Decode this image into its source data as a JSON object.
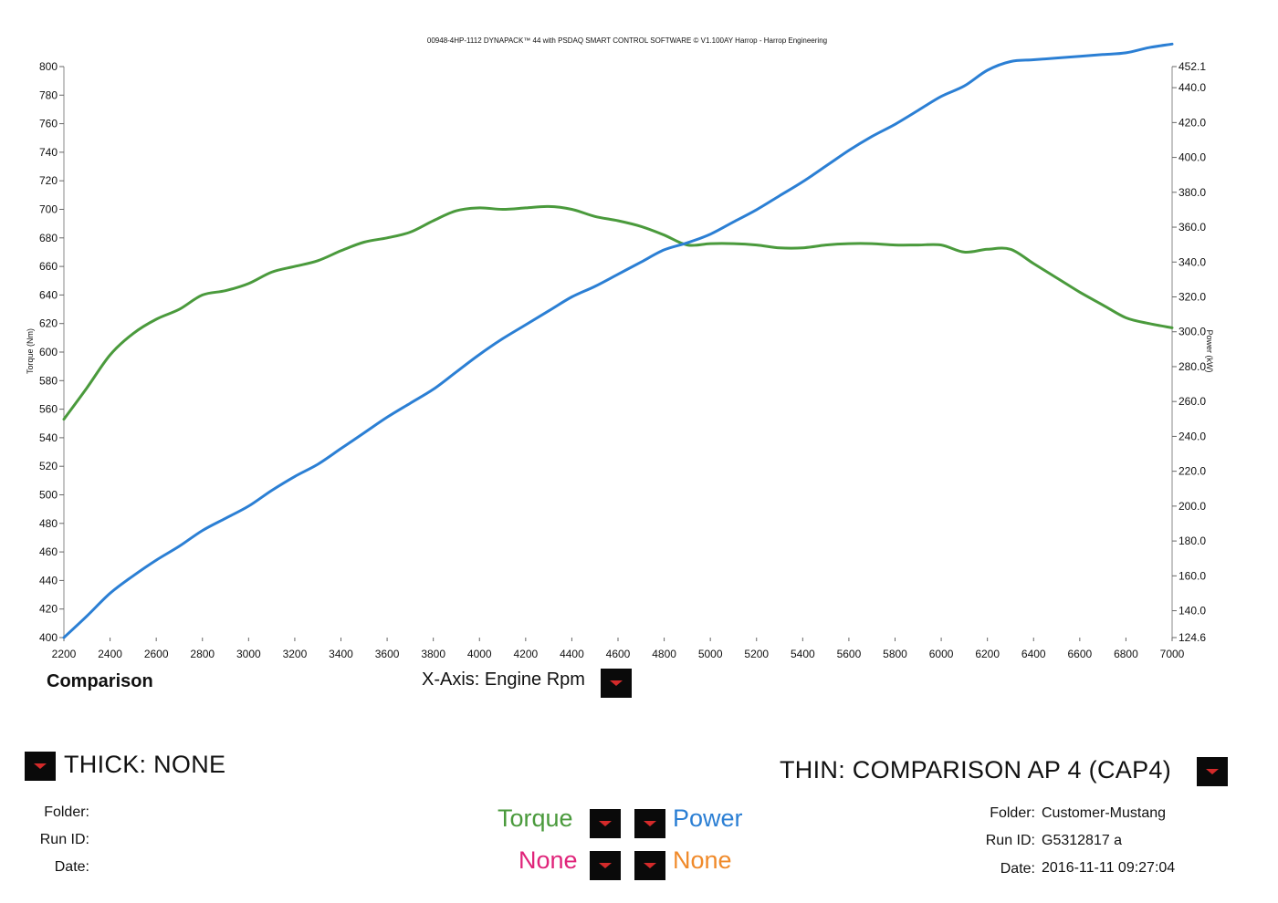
{
  "header": "00948-4HP-1112 DYNAPACK™ 44 with PSDAQ SMART CONTROL SOFTWARE © V1.100AY Harrop - Harrop Engineering",
  "chart_data": {
    "type": "line",
    "x": [
      2200,
      2300,
      2400,
      2500,
      2600,
      2700,
      2800,
      2900,
      3000,
      3100,
      3200,
      3300,
      3400,
      3500,
      3600,
      3700,
      3800,
      3900,
      4000,
      4100,
      4200,
      4300,
      4400,
      4500,
      4600,
      4700,
      4800,
      4900,
      5000,
      5100,
      5200,
      5300,
      5400,
      5500,
      5600,
      5700,
      5800,
      5900,
      6000,
      6100,
      6200,
      6300,
      6400,
      6500,
      6600,
      6700,
      6800,
      6900,
      7000
    ],
    "xlabel": "X-Axis: Engine Rpm",
    "xlim": [
      2200,
      7000
    ],
    "xticks": [
      "2200",
      "2400",
      "2600",
      "2800",
      "3000",
      "3200",
      "3400",
      "3600",
      "3800",
      "4000",
      "4200",
      "4400",
      "4600",
      "4800",
      "5000",
      "5200",
      "5400",
      "5600",
      "5800",
      "6000",
      "6200",
      "6400",
      "6600",
      "6800",
      "7000"
    ],
    "series": [
      {
        "name": "Torque",
        "axis": "left",
        "color": "#4a9a3c",
        "values": [
          553,
          575,
          598,
          613,
          623,
          630,
          640,
          643,
          648,
          656,
          660,
          664,
          671,
          677,
          680,
          684,
          692,
          699,
          701,
          700,
          701,
          702,
          700,
          695,
          692,
          688,
          682,
          675,
          676,
          676,
          675,
          673,
          673,
          675,
          676,
          676,
          675,
          675,
          675,
          670,
          672,
          672,
          662,
          652,
          642,
          633,
          624,
          620,
          617
        ]
      },
      {
        "name": "Power",
        "axis": "right",
        "color": "#2b7fd4",
        "values": [
          124.6,
          137,
          150,
          160,
          169,
          177,
          186,
          193,
          200,
          209,
          217,
          224,
          233,
          242,
          251,
          259,
          267,
          277,
          287,
          296,
          304,
          312,
          320,
          326,
          333,
          340,
          347,
          351,
          356,
          363,
          370,
          378,
          386,
          395,
          404,
          412,
          419,
          427,
          435,
          441,
          450,
          455,
          456,
          457,
          458,
          459,
          460,
          463,
          465
        ]
      }
    ],
    "y_left": {
      "label": "Torque (Nm)",
      "ylim": [
        400,
        800
      ],
      "ticks": [
        "800",
        "780",
        "760",
        "740",
        "720",
        "700",
        "680",
        "660",
        "640",
        "620",
        "600",
        "580",
        "560",
        "540",
        "520",
        "500",
        "480",
        "460",
        "440",
        "420",
        "400"
      ]
    },
    "y_right": {
      "label": "Power (kW)",
      "ylim": [
        124.6,
        452.1
      ],
      "ticks": [
        "452.1",
        "440.0",
        "420.0",
        "400.0",
        "380.0",
        "360.0",
        "340.0",
        "320.0",
        "300.0",
        "280.0",
        "260.0",
        "240.0",
        "220.0",
        "200.0",
        "180.0",
        "160.0",
        "140.0",
        "124.6"
      ]
    },
    "grid": false
  },
  "footer": {
    "comparison_label": "Comparison",
    "xaxis_label": "X-Axis: Engine Rpm",
    "thick_label": "THICK: NONE",
    "thin_label": "THIN: COMPARISON AP 4 (CAP4)",
    "left_info": {
      "folder_label": "Folder:",
      "runid_label": "Run ID:",
      "date_label": "Date:"
    },
    "right_info": {
      "folder_label": "Folder:",
      "folder_value": "Customer-Mustang",
      "runid_label": "Run ID:",
      "runid_value": "G5312817 a",
      "date_label": "Date:",
      "date_value": "2016-11-11 09:27:04"
    },
    "legend": {
      "torque": "Torque",
      "power": "Power",
      "none_left": "None",
      "none_right": "None",
      "colors": {
        "torque": "#4a9a3c",
        "power": "#2b7fd4",
        "none_left": "#e0247a",
        "none_right": "#f08a2a"
      }
    }
  }
}
